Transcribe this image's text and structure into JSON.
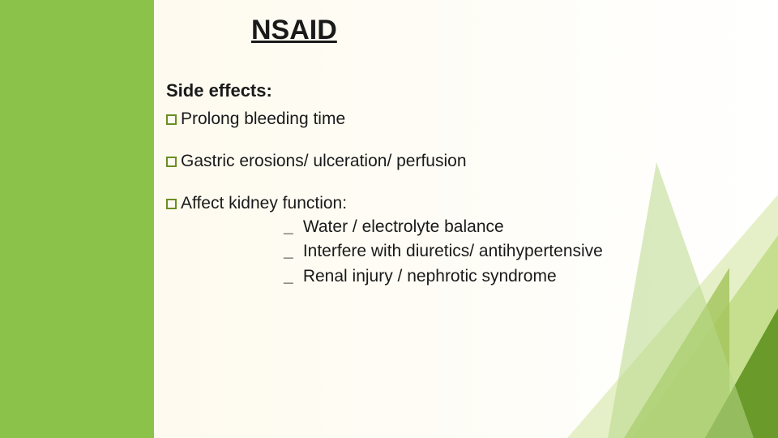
{
  "colors": {
    "sidebar": "#8bc34a",
    "bg_left": "#fdf9ec",
    "bg_right": "#ffffff",
    "bullet_border": "#6b8e23",
    "text": "#1a1a1a",
    "tri1": "#6a9a2a",
    "tri2": "#b8d98a",
    "tri3": "#e6f0c8",
    "tri4": "#a4c65e",
    "tri5": "#c5df8f"
  },
  "title": "NSAID",
  "subheading": "Side effects:",
  "bullets": [
    {
      "text": "Prolong bleeding time"
    },
    {
      "text": "Gastric erosions/ ulceration/ perfusion"
    },
    {
      "text": "Affect kidney function:"
    }
  ],
  "sub_items": [
    " Water / electrolyte balance",
    " Interfere with diuretics/ antihypertensive",
    " Renal injury / nephrotic syndrome"
  ],
  "typography": {
    "title_fontsize": 34,
    "subheading_fontsize": 22,
    "body_fontsize": 21
  }
}
